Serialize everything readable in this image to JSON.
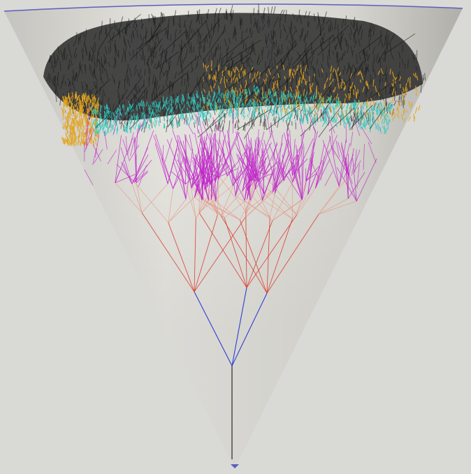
{
  "scene": {
    "subject": "cone-with-branching-tree",
    "colors": {
      "background": "#d9d9d6",
      "cone_light": "#e6e5e0",
      "cone_shadow": "#bdbcb6",
      "cone_rim": "#5a5fbf",
      "trunk": "#2a2a2a",
      "level_blue": "#2f3fd0",
      "level_red": "#d83a2a",
      "level_salmon": "#e6907f",
      "level_magenta": "#c024c8",
      "level_cyan": "#2ec9c0",
      "level_gold": "#e3a41e",
      "level_dark": "#2a2a2a"
    },
    "tree_levels": [
      {
        "name": "trunk",
        "color_key": "trunk"
      },
      {
        "name": "level-1",
        "color_key": "level_blue"
      },
      {
        "name": "level-2",
        "color_key": "level_red"
      },
      {
        "name": "level-3",
        "color_key": "level_salmon"
      },
      {
        "name": "level-4",
        "color_key": "level_magenta"
      },
      {
        "name": "level-5",
        "color_key": "level_cyan"
      },
      {
        "name": "level-6",
        "color_key": "level_gold"
      },
      {
        "name": "level-7",
        "color_key": "level_dark"
      }
    ]
  }
}
